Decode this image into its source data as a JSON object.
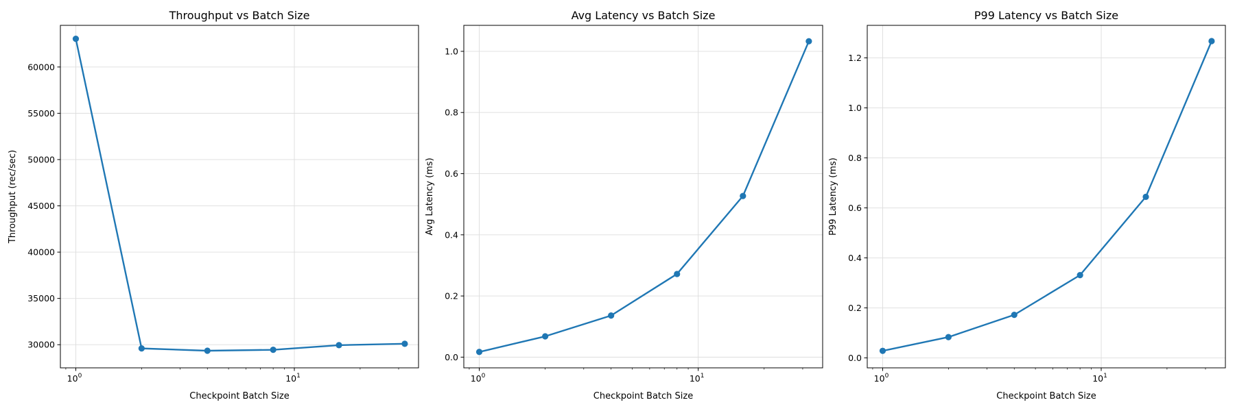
{
  "chart_data": [
    {
      "type": "line",
      "title": "Throughput vs Batch Size",
      "xlabel": "Checkpoint Batch Size",
      "ylabel": "Throughput (rec/sec)",
      "xscale": "log",
      "xlim": [
        0.85,
        37
      ],
      "ylim": [
        27500,
        64500
      ],
      "grid": true,
      "xticks": [
        1,
        10
      ],
      "xtick_labels": [
        {
          "base": "10",
          "exp": "0"
        },
        {
          "base": "10",
          "exp": "1"
        }
      ],
      "yticks": [
        30000,
        35000,
        40000,
        45000,
        50000,
        55000,
        60000
      ],
      "ytick_labels": [
        "30000",
        "35000",
        "40000",
        "45000",
        "50000",
        "55000",
        "60000"
      ],
      "color": "#1f77b4",
      "x": [
        1,
        2,
        4,
        8,
        16,
        32
      ],
      "y": [
        63050,
        29600,
        29350,
        29450,
        29950,
        30100
      ]
    },
    {
      "type": "line",
      "title": "Avg Latency vs Batch Size",
      "xlabel": "Checkpoint Batch Size",
      "ylabel": "Avg Latency (ms)",
      "xscale": "log",
      "xlim": [
        0.85,
        37
      ],
      "ylim": [
        -0.035,
        1.085
      ],
      "grid": true,
      "xticks": [
        1,
        10
      ],
      "xtick_labels": [
        {
          "base": "10",
          "exp": "0"
        },
        {
          "base": "10",
          "exp": "1"
        }
      ],
      "yticks": [
        0.0,
        0.2,
        0.4,
        0.6,
        0.8,
        1.0
      ],
      "ytick_labels": [
        "0.0",
        "0.2",
        "0.4",
        "0.6",
        "0.8",
        "1.0"
      ],
      "color": "#1f77b4",
      "x": [
        1,
        2,
        4,
        8,
        16,
        32
      ],
      "y": [
        0.017,
        0.068,
        0.136,
        0.272,
        0.527,
        1.033
      ]
    },
    {
      "type": "line",
      "title": "P99 Latency vs Batch Size",
      "xlabel": "Checkpoint Batch Size",
      "ylabel": "P99 Latency (ms)",
      "xscale": "log",
      "xlim": [
        0.85,
        37
      ],
      "ylim": [
        -0.04,
        1.33
      ],
      "grid": true,
      "xticks": [
        1,
        10
      ],
      "xtick_labels": [
        {
          "base": "10",
          "exp": "0"
        },
        {
          "base": "10",
          "exp": "1"
        }
      ],
      "yticks": [
        0.0,
        0.2,
        0.4,
        0.6,
        0.8,
        1.0,
        1.2
      ],
      "ytick_labels": [
        "0.0",
        "0.2",
        "0.4",
        "0.6",
        "0.8",
        "1.0",
        "1.2"
      ],
      "color": "#1f77b4",
      "x": [
        1,
        2,
        4,
        8,
        16,
        32
      ],
      "y": [
        0.028,
        0.083,
        0.172,
        0.331,
        0.644,
        1.267
      ]
    }
  ]
}
